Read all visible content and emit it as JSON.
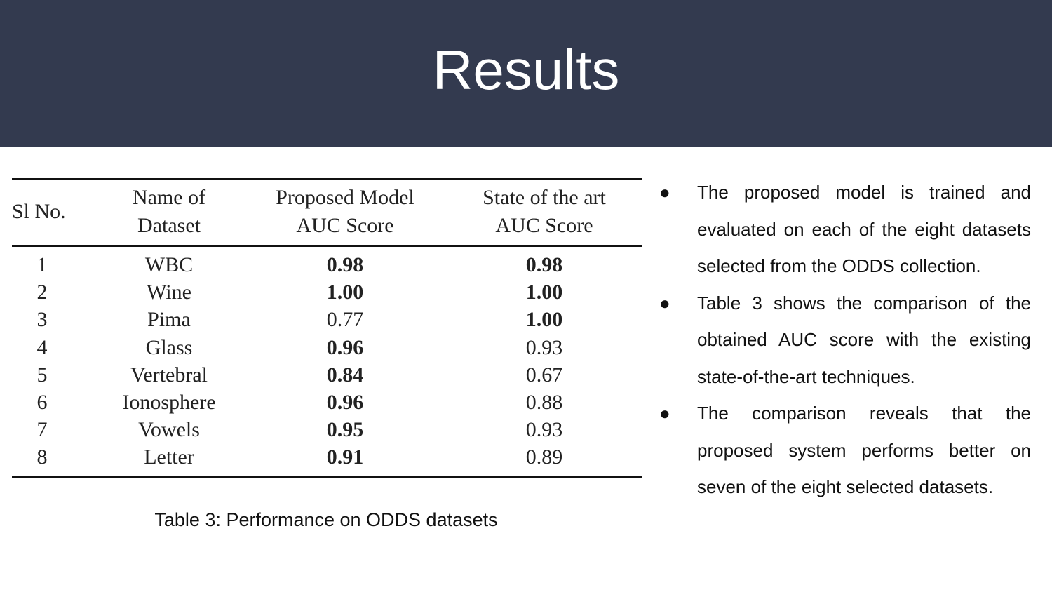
{
  "header": {
    "title": "Results"
  },
  "table": {
    "headers": [
      [
        "Sl No."
      ],
      [
        "Name of",
        "Dataset"
      ],
      [
        "Proposed Model",
        "AUC Score"
      ],
      [
        "State of the art",
        "AUC Score"
      ]
    ],
    "rows": [
      [
        "1",
        "WBC",
        "0.98",
        "0.98"
      ],
      [
        "2",
        "Wine",
        "1.00",
        "1.00"
      ],
      [
        "3",
        "Pima",
        "0.77",
        "1.00"
      ],
      [
        "4",
        "Glass",
        "0.96",
        "0.93"
      ],
      [
        "5",
        "Vertebral",
        "0.84",
        "0.67"
      ],
      [
        "6",
        "Ionosphere",
        "0.96",
        "0.88"
      ],
      [
        "7",
        "Vowels",
        "0.95",
        "0.93"
      ],
      [
        "8",
        "Letter",
        "0.91",
        "0.89"
      ]
    ],
    "bold": [
      [
        false,
        false,
        true,
        true
      ],
      [
        false,
        false,
        true,
        true
      ],
      [
        false,
        false,
        false,
        true
      ],
      [
        false,
        false,
        true,
        false
      ],
      [
        false,
        false,
        true,
        false
      ],
      [
        false,
        false,
        true,
        false
      ],
      [
        false,
        false,
        true,
        false
      ],
      [
        false,
        false,
        true,
        false
      ]
    ],
    "caption": "Table 3: Performance on ODDS datasets"
  },
  "bullets": [
    "The proposed model is trained and evaluated on each of the eight datasets selected from the ODDS collection.",
    "Table 3 shows the comparison of the obtained AUC score with the existing state-of-the-art techniques.",
    "The comparison reveals that the proposed system performs better on seven of the eight selected datasets."
  ]
}
